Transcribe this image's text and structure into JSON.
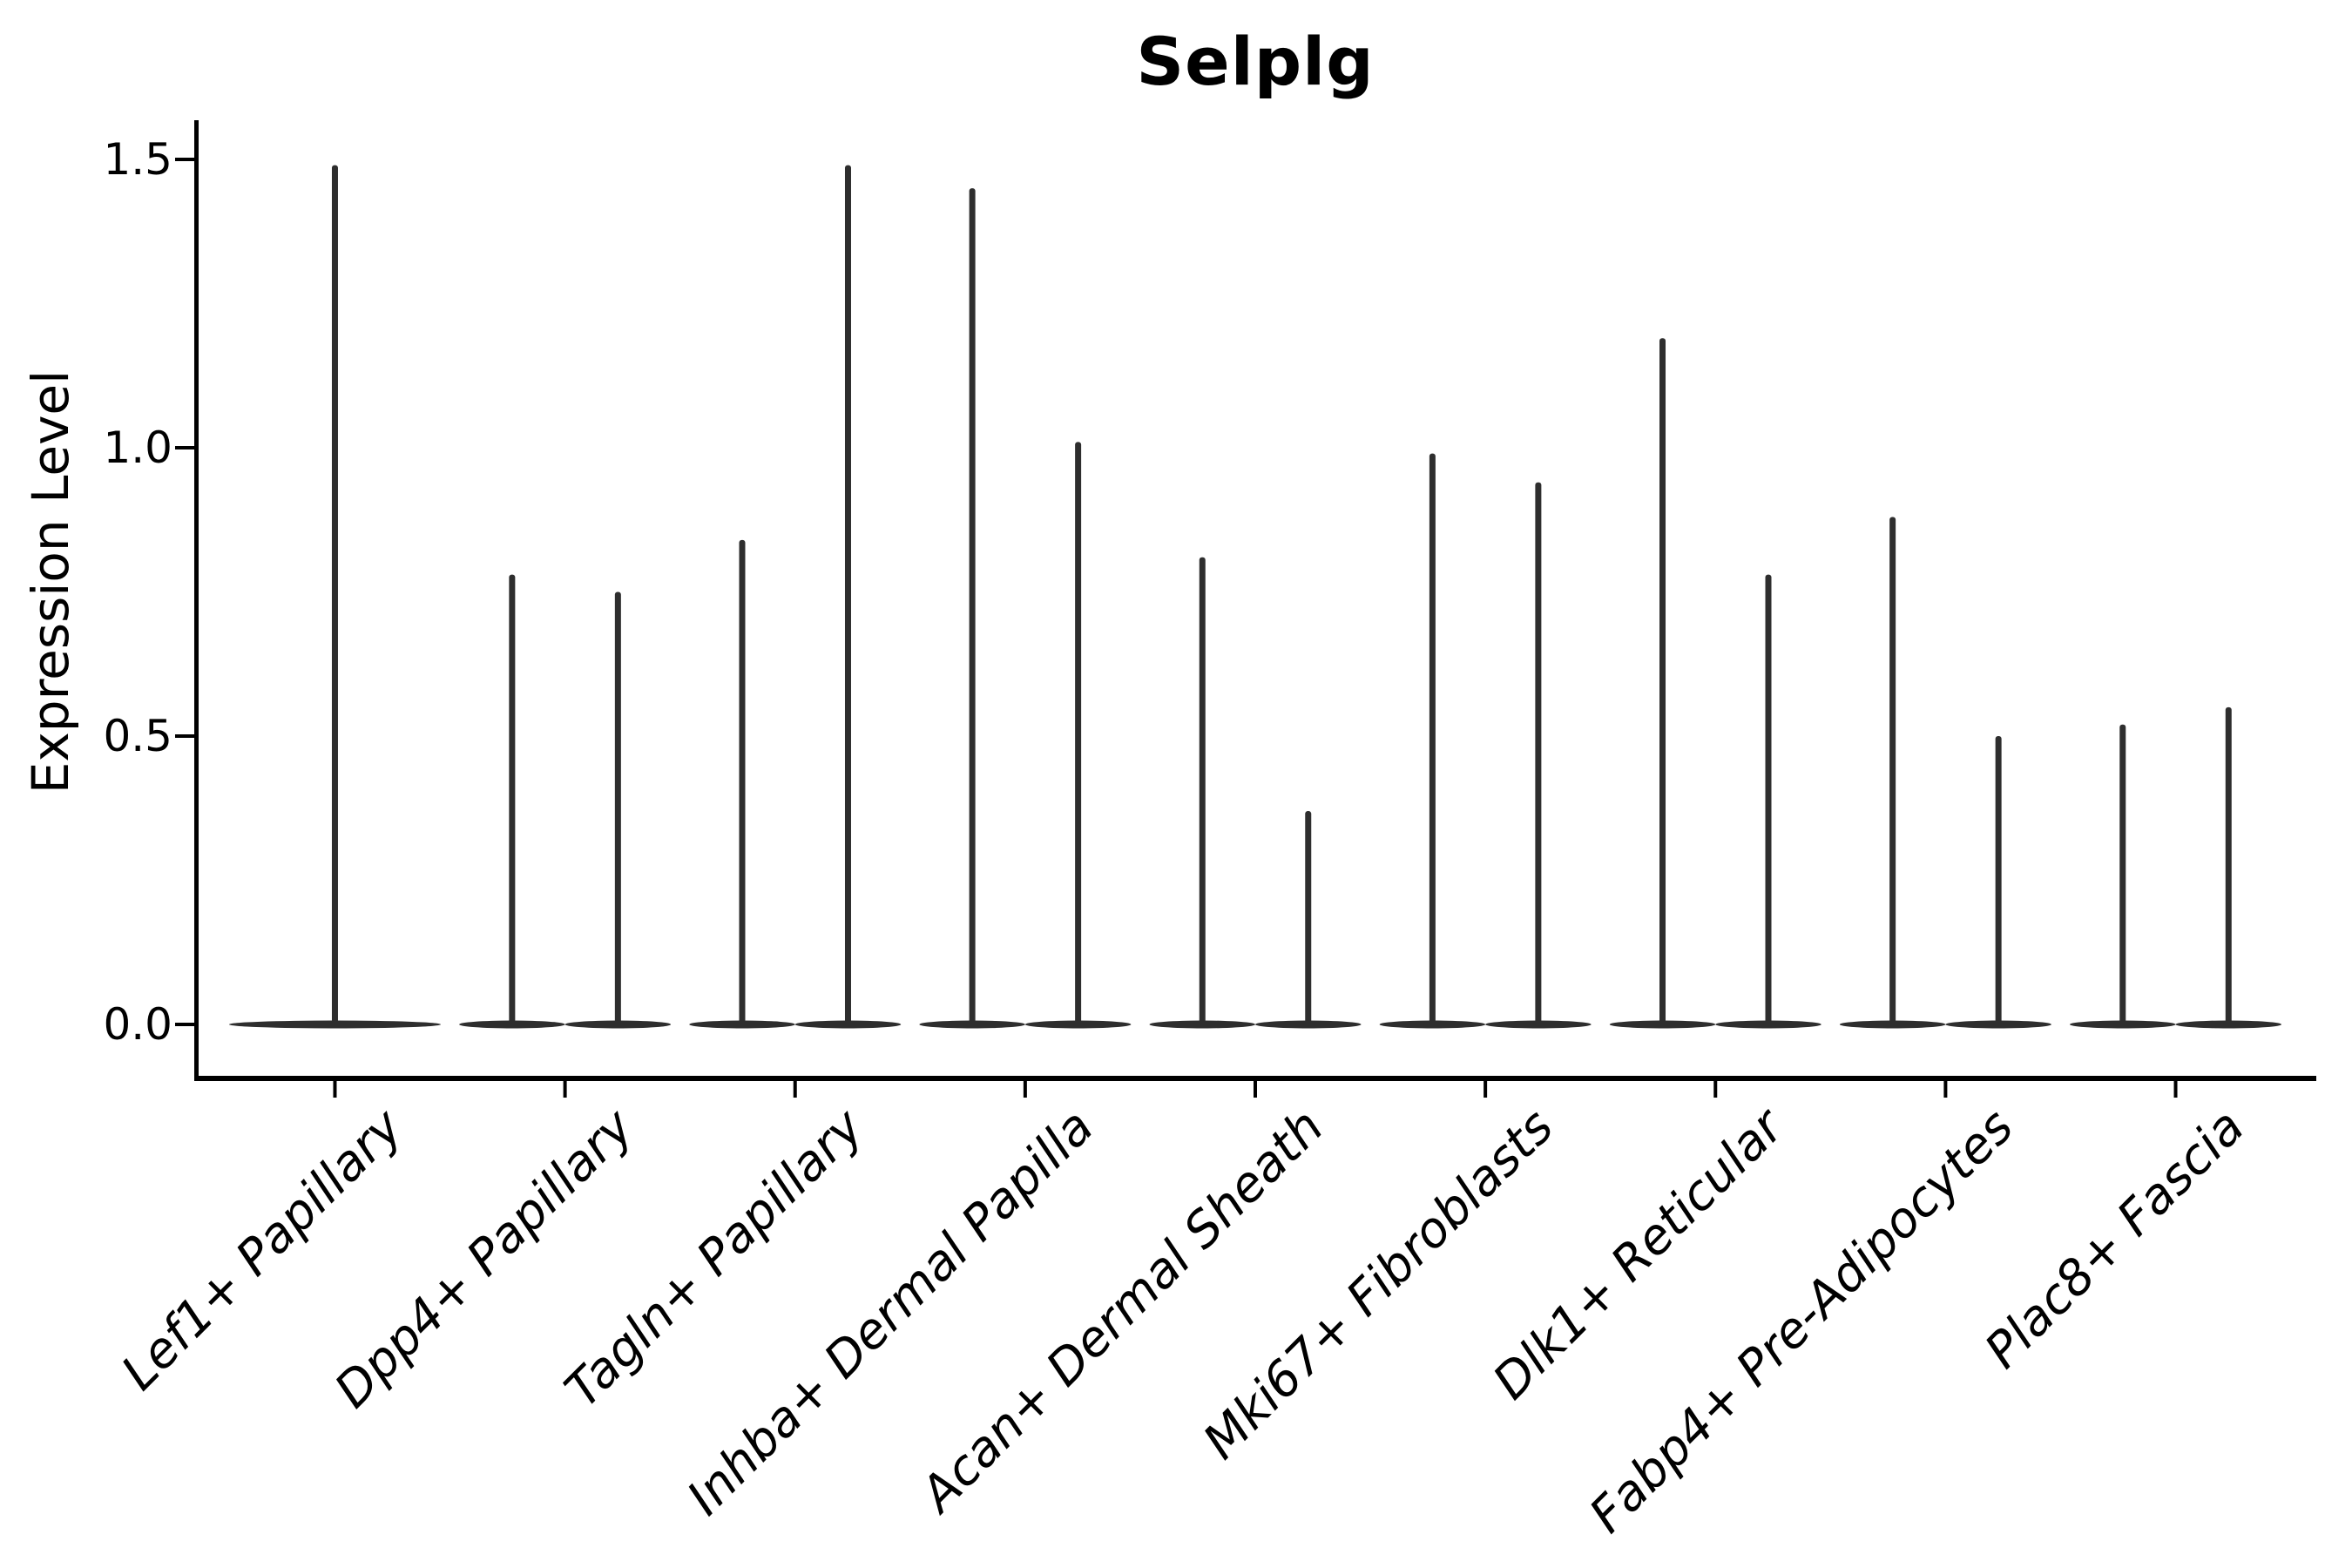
{
  "figure": {
    "background": "#ffffff",
    "ink_color": "#000000",
    "violin_color": "#2e2e2e"
  },
  "chart_data": {
    "type": "violin",
    "title": "Selplg",
    "ylabel": "Expression Level",
    "xlabel": "",
    "yticks": [
      "0.0",
      "0.5",
      "1.0",
      "1.5"
    ],
    "ytick_values": [
      0.0,
      0.5,
      1.0,
      1.5
    ],
    "ylim": [
      -0.09,
      1.57
    ],
    "grid": false,
    "legend": null,
    "categories": [
      "Lef1+ Papillary",
      "Dpp4+ Papillary",
      "Tagln+ Papillary",
      "Inhba+ Dermal Papilla",
      "Acan+ Dermal Sheath",
      "Mki67+ Fibroblasts",
      "Dlk1+ Reticular",
      "Fabp4+ Pre-Adipocytes",
      "Plac8+ Fascia"
    ],
    "violin_encoding": "each violin is a flat density disc at expression 0 with a thin spike rising to the maximum expression value",
    "violins_max": [
      [
        1.49
      ],
      [
        0.78,
        0.75
      ],
      [
        0.84,
        1.49
      ],
      [
        1.45,
        1.01
      ],
      [
        0.81,
        0.37
      ],
      [
        0.99,
        0.94
      ],
      [
        1.19,
        0.78
      ],
      [
        0.88,
        0.5
      ],
      [
        0.52,
        0.55
      ]
    ]
  }
}
